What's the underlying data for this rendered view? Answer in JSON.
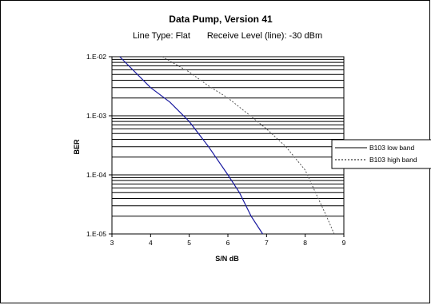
{
  "chart_data": {
    "type": "line",
    "title": "Data Pump, Version 41",
    "subtitle_left": "Line Type: Flat",
    "subtitle_right": "Receive Level (line): -30 dBm",
    "xlabel": "S/N dB",
    "ylabel": "BER",
    "xlim": [
      3,
      9
    ],
    "ylim": [
      1e-05,
      0.01
    ],
    "yscale": "log",
    "x_ticks": [
      "3",
      "4",
      "5",
      "6",
      "7",
      "8",
      "9"
    ],
    "y_ticks": [
      "1.E-05",
      "1.E-04",
      "1.E-03",
      "1.E-02"
    ],
    "grid": "horizontal log gridlines",
    "legend_position": "right",
    "series": [
      {
        "name": "B103 low band",
        "style": "solid",
        "color": "#1a1aa0",
        "points": [
          [
            3.2,
            0.01
          ],
          [
            4.0,
            0.003
          ],
          [
            4.5,
            0.0017
          ],
          [
            5.0,
            0.0008
          ],
          [
            5.5,
            0.0003
          ],
          [
            6.0,
            0.0001
          ],
          [
            6.3,
            5e-05
          ],
          [
            6.6,
            2e-05
          ],
          [
            6.9,
            1e-05
          ]
        ]
      },
      {
        "name": "B103 high band",
        "style": "dashed",
        "color": "#555555",
        "points": [
          [
            4.3,
            0.01
          ],
          [
            5.0,
            0.0055
          ],
          [
            5.5,
            0.0032
          ],
          [
            6.0,
            0.002
          ],
          [
            6.5,
            0.0011
          ],
          [
            7.0,
            0.0006
          ],
          [
            7.5,
            0.0003
          ],
          [
            8.0,
            0.00012
          ],
          [
            8.3,
            4.5e-05
          ],
          [
            8.55,
            2e-05
          ],
          [
            8.75,
            1e-05
          ]
        ]
      }
    ]
  }
}
